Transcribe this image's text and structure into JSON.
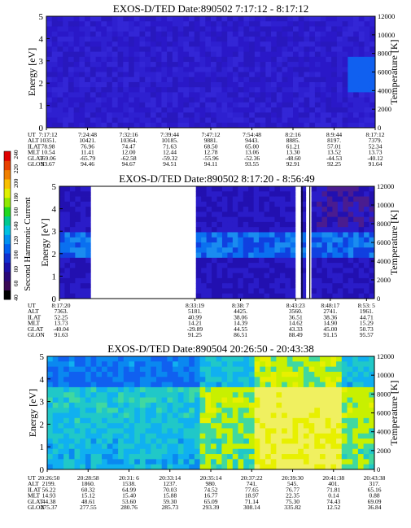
{
  "chart_data": [
    {
      "type": "heatmap",
      "title": "EXOS-D/TED   Date:890502   7:17:12 - 8:17:12",
      "ylabel": "Energy [eV]",
      "y2label": "Temperature [K]",
      "ylim": [
        0,
        5
      ],
      "y2lim": [
        0,
        12000
      ],
      "yticks": [
        "0",
        "1",
        "2",
        "3",
        "4",
        "5"
      ],
      "y2ticks": [
        "0",
        "2000",
        "4000",
        "6000",
        "8000",
        "10000",
        "12000"
      ],
      "gaps": [],
      "table": {
        "labels": [
          "UT",
          "ALT",
          "ILAT",
          "MLT",
          "GLAT",
          "GLON"
        ],
        "columns": [
          [
            "7:17:12",
            "10351.",
            "78.98",
            "10.54",
            "-69.06",
            "93.67"
          ],
          [
            "7:24:48",
            "10421.",
            "76.96",
            "11.41",
            "-65.79",
            "94.46"
          ],
          [
            "7:32:16",
            "10364.",
            "74.47",
            "12.00",
            "-62.58",
            "94.67"
          ],
          [
            "7:39:44",
            "10185.",
            "71.63",
            "12.44",
            "-59.32",
            "94.51"
          ],
          [
            "7:47:12",
            "9881.",
            "68.50",
            "12.78",
            "-55.96",
            "94.11"
          ],
          [
            "7:54:48",
            "9443.",
            "65.00",
            "13.06",
            "-52.36",
            "93.55"
          ],
          [
            "8:2:16",
            "8885.",
            "61.21",
            "13.30",
            "-48.60",
            "92.91"
          ],
          [
            "8:9:44",
            "8197.",
            "57.01",
            "13.52",
            "-44.53",
            "92.25"
          ],
          [
            "8:17:12",
            "7379.",
            "52.34",
            "13.73",
            "-40.12",
            "91.64"
          ]
        ]
      }
    },
    {
      "type": "heatmap",
      "title": "EXOS-D/TED   Date:890502   8:17:20 - 8:56:49",
      "ylabel": "Energy [eV]",
      "y2label": "Temperature [K]",
      "ylim": [
        0,
        5
      ],
      "y2lim": [
        0,
        12000
      ],
      "yticks": [
        "0",
        "1",
        "2",
        "3",
        "4",
        "5"
      ],
      "y2ticks": [
        "0",
        "2000",
        "4000",
        "6000",
        "8000",
        "10000",
        "12000"
      ],
      "gaps": [
        [
          0.09,
          0.43
        ],
        [
          0.745,
          0.76
        ],
        [
          0.78,
          0.79
        ]
      ],
      "table": {
        "labels": [
          "UT",
          "ALT",
          "ILAT",
          "MLT",
          "GLAT",
          "GLON"
        ],
        "columns": [
          [
            "8:17:20",
            "7363.",
            "52.25",
            "13.73",
            "-40.04",
            "91.63"
          ],
          [
            "8:33:19",
            "5181.",
            "40.99",
            "14.21",
            "-29.89",
            "91.25"
          ],
          [
            "8:38: 7",
            "4425.",
            "38.06",
            "14.39",
            "44.55",
            "86.51"
          ],
          [
            "8:43:23",
            "3560.",
            "36.51",
            "14.62",
            "43.33",
            "88.49"
          ],
          [
            "8:48:17",
            "2741.",
            "38.36",
            "14.90",
            "45.00",
            "91.15"
          ],
          [
            "8:53: 5",
            "1961.",
            "44.71",
            "15.29",
            "50.73",
            "95.57"
          ]
        ]
      }
    },
    {
      "type": "heatmap",
      "title": "EXOS-D/TED   Date:890504   20:26:50 - 20:43:38",
      "ylabel": "Energy [eV]",
      "y2label": "Temperature [K]",
      "ylim": [
        0,
        5
      ],
      "y2lim": [
        0,
        12000
      ],
      "yticks": [
        "0",
        "1",
        "2",
        "3",
        "4",
        "5"
      ],
      "y2ticks": [
        "0",
        "2000",
        "4000",
        "6000",
        "8000",
        "10000",
        "12000"
      ],
      "gaps": [],
      "table": {
        "labels": [
          "UT",
          "ALT",
          "ILAT",
          "MLT",
          "GLAT",
          "GLON"
        ],
        "columns": [
          [
            "20:26:50",
            "2199.",
            "56.22",
            "14.93",
            "44.38",
            "275.37"
          ],
          [
            "20:28:58",
            "1860.",
            "60.32",
            "15.12",
            "48.61",
            "277.55"
          ],
          [
            "20:31: 6",
            "1538.",
            "64.99",
            "15.40",
            "53.60",
            "280.76"
          ],
          [
            "20:33:14",
            "1237.",
            "70.03",
            "15.88",
            "59.30",
            "285.73"
          ],
          [
            "20:35:14",
            "980.",
            "74.52",
            "16.77",
            "65.09",
            "293.39"
          ],
          [
            "20:37:22",
            "741.",
            "77.65",
            "18.97",
            "71.14",
            "308.14"
          ],
          [
            "20:39:30",
            "545.",
            "76.77",
            "22.35",
            "75.30",
            "335.82"
          ],
          [
            "20:41:38",
            "401.",
            "71.81",
            "0.14",
            "74.43",
            "12.52"
          ],
          [
            "20:43:38",
            "317.",
            "65.16",
            "0.88",
            "69.09",
            "36.84"
          ]
        ]
      }
    }
  ],
  "colorbar": {
    "label": "Second Harmonic Current",
    "ticks": [
      "40",
      "60",
      "80",
      "100",
      "120",
      "140",
      "160",
      "180",
      "200",
      "220",
      "240"
    ],
    "colors": [
      "#000000",
      "#3a0a55",
      "#2a0878",
      "#1a10a8",
      "#1030d0",
      "#0060f0",
      "#0090f0",
      "#00c0e0",
      "#00c890",
      "#20d820",
      "#90e800",
      "#e0f000",
      "#f8c000",
      "#f08000",
      "#e84000",
      "#e00000"
    ]
  }
}
